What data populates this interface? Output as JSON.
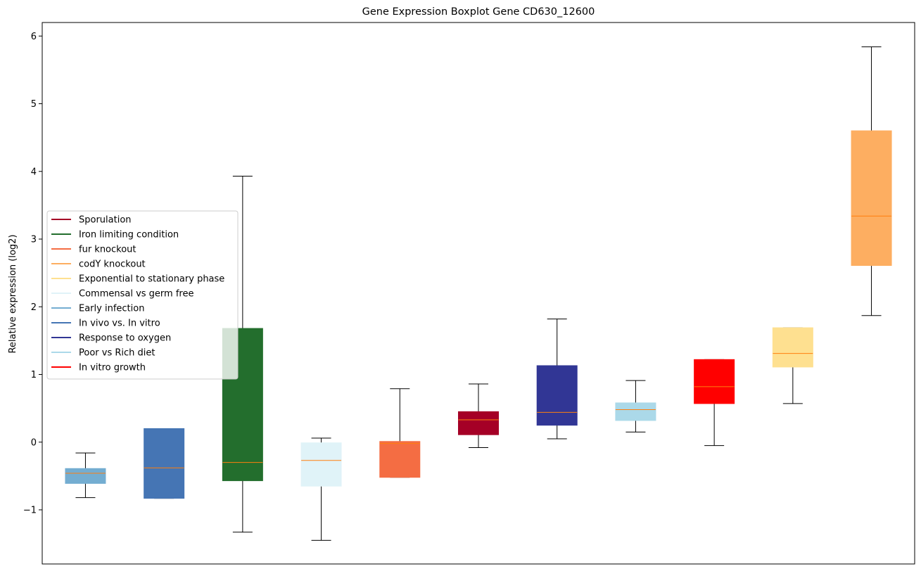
{
  "chart_data": {
    "type": "boxplot",
    "title": "Gene Expression Boxplot Gene CD630_12600",
    "xlabel": "",
    "ylabel": "Relative expression (log2)",
    "ylim": [
      -1.8,
      6.2
    ],
    "yticks": [
      {
        "value": -1,
        "label": "−1"
      },
      {
        "value": 0,
        "label": "0"
      },
      {
        "value": 1,
        "label": "1"
      },
      {
        "value": 2,
        "label": "2"
      },
      {
        "value": 3,
        "label": "3"
      },
      {
        "value": 4,
        "label": "4"
      },
      {
        "value": 5,
        "label": "5"
      },
      {
        "value": 6,
        "label": "6"
      }
    ],
    "median_color": "#ff7f0e",
    "legend": {
      "placement": "center-left",
      "entries": [
        {
          "label": "Sporulation",
          "color": "#a50026"
        },
        {
          "label": "Iron limiting condition",
          "color": "#236e2d"
        },
        {
          "label": "fur knockout",
          "color": "#f46d43"
        },
        {
          "label": "codY knockout",
          "color": "#fdae61"
        },
        {
          "label": "Exponential to stationary phase",
          "color": "#fee090"
        },
        {
          "label": "Commensal vs germ free",
          "color": "#e0f3f8"
        },
        {
          "label": "Early infection",
          "color": "#74add1"
        },
        {
          "label": "In vivo vs. In vitro",
          "color": "#4575b4"
        },
        {
          "label": "Response to oxygen",
          "color": "#313695"
        },
        {
          "label": "Poor vs Rich diet",
          "color": "#abd9e9"
        },
        {
          "label": "In vitro growth",
          "color": "#ff0000"
        }
      ]
    },
    "boxes": [
      {
        "condition": "Early infection",
        "color": "#74add1",
        "whisker_low": -0.82,
        "q1": -0.61,
        "median": -0.46,
        "q3": -0.39,
        "whisker_high": -0.16
      },
      {
        "condition": "In vivo vs. In vitro",
        "color": "#4575b4",
        "whisker_low": -0.83,
        "q1": -0.83,
        "median": -0.38,
        "q3": 0.2,
        "whisker_high": 0.2
      },
      {
        "condition": "Iron limiting condition",
        "color": "#236e2d",
        "whisker_low": -1.33,
        "q1": -0.57,
        "median": -0.3,
        "q3": 1.68,
        "whisker_high": 3.93
      },
      {
        "condition": "Commensal vs germ free",
        "color": "#e0f3f8",
        "whisker_low": -1.45,
        "q1": -0.65,
        "median": -0.27,
        "q3": -0.01,
        "whisker_high": 0.06
      },
      {
        "condition": "fur knockout",
        "color": "#f46d43",
        "whisker_low": -0.52,
        "q1": -0.52,
        "median": -0.02,
        "q3": 0.01,
        "whisker_high": 0.79
      },
      {
        "condition": "Sporulation",
        "color": "#a50026",
        "whisker_low": -0.08,
        "q1": 0.11,
        "median": 0.33,
        "q3": 0.45,
        "whisker_high": 0.86
      },
      {
        "condition": "Response to oxygen",
        "color": "#313695",
        "whisker_low": 0.05,
        "q1": 0.25,
        "median": 0.44,
        "q3": 1.13,
        "whisker_high": 1.82
      },
      {
        "condition": "Poor vs Rich diet",
        "color": "#abd9e9",
        "whisker_low": 0.15,
        "q1": 0.32,
        "median": 0.48,
        "q3": 0.58,
        "whisker_high": 0.91
      },
      {
        "condition": "In vitro growth",
        "color": "#ff0000",
        "whisker_low": -0.05,
        "q1": 0.57,
        "median": 0.82,
        "q3": 1.22,
        "whisker_high": 1.22
      },
      {
        "condition": "Exponential to stationary phase",
        "color": "#fee090",
        "whisker_low": 0.57,
        "q1": 1.11,
        "median": 1.31,
        "q3": 1.69,
        "whisker_high": 1.69
      },
      {
        "condition": "codY knockout",
        "color": "#fdae61",
        "whisker_low": 1.87,
        "q1": 2.61,
        "median": 3.34,
        "q3": 4.6,
        "whisker_high": 5.84
      }
    ]
  }
}
